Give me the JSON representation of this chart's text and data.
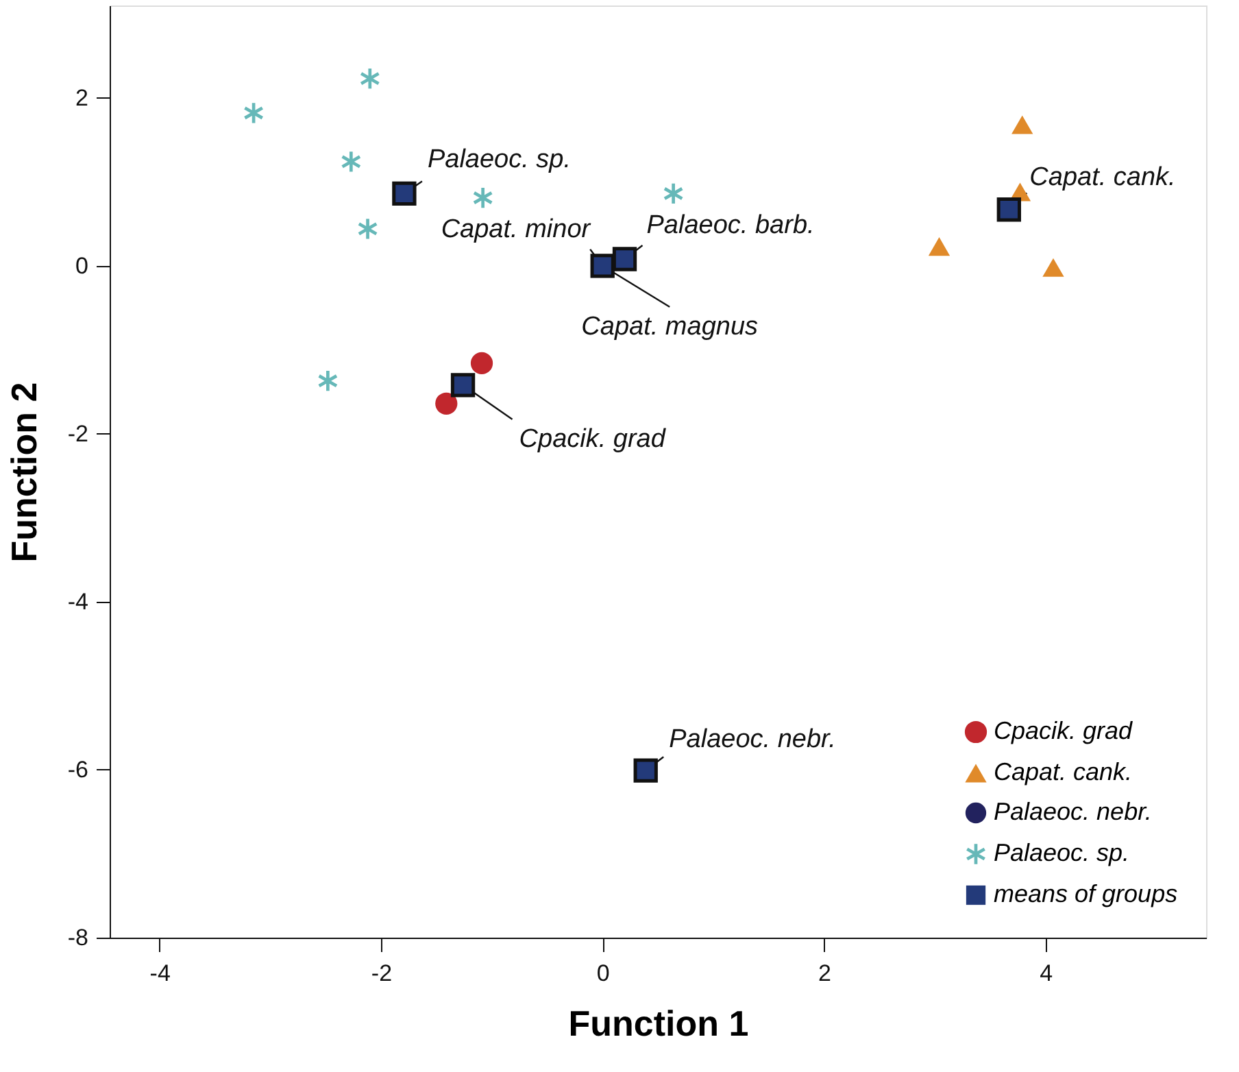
{
  "chart_data": {
    "type": "scatter",
    "xlabel": "Function 1",
    "ylabel": "Function 2",
    "xlim": [
      -4.45,
      5.45
    ],
    "ylim": [
      -8,
      3.1
    ],
    "xticks": [
      -4,
      -2,
      0,
      2,
      4
    ],
    "yticks": [
      -8,
      -6,
      -4,
      -2,
      0,
      2
    ],
    "grid": false,
    "legend": "bottom right",
    "series": [
      {
        "name": "Cpacik. grad",
        "color": "#c1272d",
        "marker": "circle",
        "x": [
          -1.09,
          -1.41
        ],
        "values": [
          -1.16,
          -1.64
        ]
      },
      {
        "name": "Capat. cank.",
        "color": "#e08a2a",
        "marker": "triangle",
        "x": [
          3.79,
          3.77,
          3.04,
          4.07
        ],
        "values": [
          1.68,
          0.88,
          0.23,
          -0.02
        ]
      },
      {
        "name": "Palaeoc. nebr.",
        "color": "#22225e",
        "marker": "circle",
        "x": [
          0.39
        ],
        "values": [
          -6.01
        ]
      },
      {
        "name": "Palaeoc. sp.",
        "color": "#66b8b8",
        "marker": "cross",
        "x": [
          -3.15,
          -2.1,
          -2.27,
          -2.12,
          -1.08,
          0.64,
          -2.48
        ],
        "values": [
          1.82,
          2.23,
          1.24,
          0.44,
          0.81,
          0.86,
          -1.37
        ]
      },
      {
        "name": "means of groups",
        "color": "#233a7a",
        "marker": "square",
        "x": [
          -1.79,
          0,
          0.2,
          -1.26,
          3.67,
          0.39
        ],
        "values": [
          0.86,
          0,
          0.08,
          -1.42,
          0.67,
          -6.01
        ]
      }
    ],
    "annotations": [
      {
        "text": "Palaeoc. sp.",
        "x": -1.79,
        "y": 0.86
      },
      {
        "text": "Capat. minor",
        "x": 0,
        "y": 0
      },
      {
        "text": "Palaeoc. barb.",
        "x": 0.2,
        "y": 0.08
      },
      {
        "text": "Capat. magnus",
        "x": 0,
        "y": 0
      },
      {
        "text": "Cpacik. grad",
        "x": -1.26,
        "y": -1.42
      },
      {
        "text": "Capat. cank.",
        "x": 3.67,
        "y": 0.67
      },
      {
        "text": "Palaeoc. nebr.",
        "x": 0.39,
        "y": -6.01
      }
    ]
  }
}
